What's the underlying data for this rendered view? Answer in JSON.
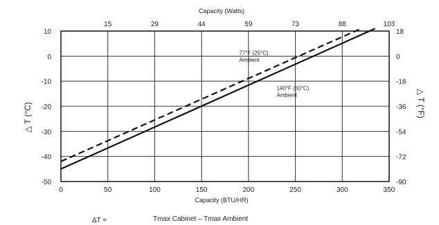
{
  "chart_data": {
    "type": "line",
    "x_label_bottom": "Capacity (BTU/HR)",
    "x_label_top": "Capacity (Watts)",
    "y_label_left": "△ T (°C)",
    "y_label_right": "△ T (°F)",
    "xlim": [
      0,
      350
    ],
    "ylim": [
      -50,
      10
    ],
    "x_ticks_bottom": [
      0,
      50,
      100,
      150,
      200,
      250,
      300,
      350
    ],
    "y_ticks_left": [
      10,
      0,
      -10,
      -20,
      -30,
      -40,
      -50
    ],
    "top_ticks": [
      {
        "label": "15",
        "x": 50
      },
      {
        "label": "29",
        "x": 100
      },
      {
        "label": "44",
        "x": 150
      },
      {
        "label": "59",
        "x": 200
      },
      {
        "label": "73",
        "x": 250
      },
      {
        "label": "88",
        "x": 300
      },
      {
        "label": "103",
        "x": 350
      }
    ],
    "right_ticks": [
      {
        "label": "18",
        "y": 10
      },
      {
        "label": "0",
        "y": 0
      },
      {
        "label": "-18",
        "y": -10
      },
      {
        "label": "-36",
        "y": -20
      },
      {
        "label": "-54",
        "y": -30
      },
      {
        "label": "-72",
        "y": -40
      },
      {
        "label": "-90",
        "y": -50
      }
    ],
    "grid": true,
    "series": [
      {
        "name": "77°F (25°C) Ambient",
        "style": "dashed",
        "x": [
          0,
          320
        ],
        "y": [
          -42,
          11
        ]
      },
      {
        "name": "140°F (60°C) Ambient",
        "style": "solid",
        "x": [
          0,
          335
        ],
        "y": [
          -45,
          11
        ]
      }
    ],
    "annotations": [
      {
        "lines": [
          "77°F (25°C)",
          "Ambient"
        ],
        "x": 190,
        "y": 0.5
      },
      {
        "lines": [
          "140°F (60°C)",
          "Ambient"
        ],
        "x": 230,
        "y": -13.5
      }
    ],
    "formula": {
      "lhs": "ΔT =",
      "rhs": "Tmax Cabinet – Tmax Ambient"
    }
  }
}
